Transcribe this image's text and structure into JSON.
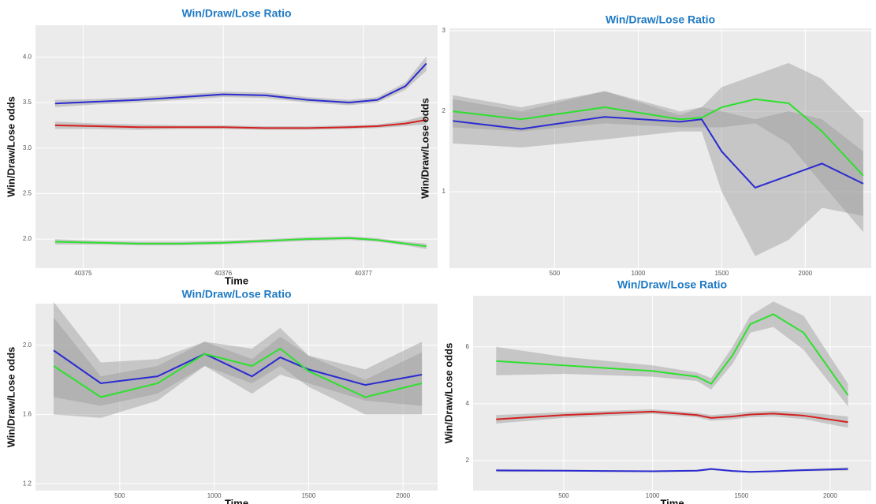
{
  "chart_data": [
    {
      "type": "line",
      "title": "Win/Draw/Lose Ratio",
      "x_label": "Time",
      "y_label": "Win/Draw/Lose odds",
      "x": [
        40374.8,
        40375.1,
        40375.4,
        40375.7,
        40376.0,
        40376.3,
        40376.6,
        40376.9,
        40377.1,
        40377.3,
        40377.45
      ],
      "xlim": [
        40374.66,
        40377.53
      ],
      "ylim": [
        1.68,
        4.35
      ],
      "xticks": [
        40375,
        40376,
        40377
      ],
      "yticks": [
        {
          "value": 2,
          "label": "2.0"
        },
        2.5,
        {
          "value": 3,
          "label": "3.0"
        },
        3.5,
        {
          "value": 4,
          "label": "4.0"
        }
      ],
      "grid": true,
      "band_color": "#9a9a9a",
      "series": [
        {
          "color": "#2b2bd1",
          "values": [
            3.49,
            3.51,
            3.53,
            3.56,
            3.59,
            3.58,
            3.53,
            3.5,
            3.53,
            3.68,
            3.93
          ],
          "lower": [
            3.45,
            3.48,
            3.5,
            3.53,
            3.56,
            3.55,
            3.5,
            3.47,
            3.5,
            3.64,
            3.85
          ],
          "upper": [
            3.53,
            3.54,
            3.56,
            3.59,
            3.62,
            3.61,
            3.56,
            3.53,
            3.56,
            3.72,
            4.01
          ]
        },
        {
          "color": "#d42020",
          "values": [
            3.25,
            3.24,
            3.23,
            3.23,
            3.23,
            3.22,
            3.22,
            3.23,
            3.24,
            3.27,
            3.31
          ],
          "lower": [
            3.21,
            3.21,
            3.2,
            3.21,
            3.21,
            3.2,
            3.2,
            3.21,
            3.22,
            3.24,
            3.26
          ],
          "upper": [
            3.29,
            3.27,
            3.26,
            3.25,
            3.25,
            3.24,
            3.24,
            3.25,
            3.26,
            3.3,
            3.36
          ]
        },
        {
          "color": "#2ee02e",
          "values": [
            1.97,
            1.96,
            1.95,
            1.95,
            1.96,
            1.98,
            2.0,
            2.01,
            1.99,
            1.95,
            1.92
          ],
          "lower": [
            1.94,
            1.94,
            1.93,
            1.93,
            1.94,
            1.96,
            1.98,
            1.99,
            1.97,
            1.93,
            1.89
          ],
          "upper": [
            2.0,
            1.98,
            1.97,
            1.97,
            1.98,
            2.0,
            2.02,
            2.03,
            2.01,
            1.97,
            1.95
          ]
        }
      ]
    },
    {
      "type": "line",
      "title": "Win/Draw/Lose Ratio",
      "y_label": "Win/Draw/Lose odds",
      "x": [
        -110,
        300,
        800,
        1250,
        1380,
        1500,
        1700,
        1900,
        2100,
        2347
      ],
      "xlim": [
        -130,
        2395
      ],
      "ylim": [
        0.05,
        3.03
      ],
      "xticks": [
        500,
        1000,
        1500,
        2000
      ],
      "yticks": [
        1,
        2,
        3
      ],
      "grid": true,
      "band_color": "#9a9a9a",
      "series": [
        {
          "color": "#2ee02e",
          "values": [
            2.0,
            1.9,
            2.05,
            1.9,
            1.92,
            2.05,
            2.15,
            2.1,
            1.75,
            1.2
          ],
          "lower": [
            1.8,
            1.75,
            1.85,
            1.8,
            1.8,
            1.8,
            1.85,
            1.6,
            1.1,
            0.5
          ],
          "upper": [
            2.2,
            2.05,
            2.25,
            2.0,
            2.05,
            2.3,
            2.45,
            2.6,
            2.4,
            1.9
          ]
        },
        {
          "color": "#2b2bd1",
          "values": [
            1.88,
            1.78,
            1.93,
            1.87,
            1.9,
            1.5,
            1.05,
            1.2,
            1.35,
            1.1
          ],
          "lower": [
            1.6,
            1.55,
            1.65,
            1.75,
            1.75,
            1.0,
            0.2,
            0.4,
            0.8,
            0.7
          ],
          "upper": [
            2.15,
            2.0,
            2.25,
            1.95,
            2.05,
            2.0,
            1.9,
            2.0,
            1.9,
            1.5
          ]
        }
      ]
    },
    {
      "type": "line",
      "title": "Win/Draw/Lose Ratio",
      "x_label": "Time",
      "y_label": "Win/Draw/Lose odds",
      "x": [
        150,
        400,
        700,
        950,
        1200,
        1350,
        1500,
        1800,
        2100
      ],
      "xlim": [
        54,
        2183
      ],
      "ylim": [
        1.16,
        2.24
      ],
      "xticks": [
        500,
        1000,
        1500,
        2000
      ],
      "yticks": [
        1.2,
        1.6,
        {
          "value": 2,
          "label": "2.0"
        }
      ],
      "grid": true,
      "band_color": "#9a9a9a",
      "series": [
        {
          "color": "#2b2bd1",
          "values": [
            1.97,
            1.78,
            1.82,
            1.95,
            1.82,
            1.93,
            1.86,
            1.77,
            1.83
          ],
          "lower": [
            1.7,
            1.65,
            1.72,
            1.88,
            1.72,
            1.83,
            1.78,
            1.68,
            1.65
          ],
          "upper": [
            2.25,
            1.9,
            1.92,
            2.02,
            1.92,
            2.05,
            1.94,
            1.86,
            2.02
          ]
        },
        {
          "color": "#2ee02e",
          "values": [
            1.88,
            1.7,
            1.78,
            1.95,
            1.88,
            1.98,
            1.85,
            1.7,
            1.78
          ],
          "lower": [
            1.6,
            1.58,
            1.68,
            1.88,
            1.78,
            1.88,
            1.76,
            1.6,
            1.6
          ],
          "upper": [
            2.16,
            1.82,
            1.88,
            2.02,
            1.98,
            2.1,
            1.94,
            1.8,
            1.96
          ]
        }
      ]
    },
    {
      "type": "line",
      "title": "Win/Draw/Lose Ratio",
      "x_label": "Time",
      "y_label": "Win/Draw/Lose odds",
      "x": [
        120,
        500,
        1000,
        1250,
        1330,
        1450,
        1550,
        1680,
        1850,
        2100
      ],
      "xlim": [
        -10,
        2231
      ],
      "ylim": [
        0.94,
        7.8
      ],
      "xticks": [
        500,
        1000,
        1500,
        2000
      ],
      "yticks": [
        2,
        4,
        6
      ],
      "grid": true,
      "band_color": "#9a9a9a",
      "series": [
        {
          "color": "#2ee02e",
          "values": [
            5.5,
            5.35,
            5.15,
            4.95,
            4.7,
            5.7,
            6.8,
            7.15,
            6.5,
            4.3
          ],
          "lower": [
            5.0,
            5.05,
            4.95,
            4.8,
            4.5,
            5.4,
            6.5,
            6.7,
            5.9,
            3.9
          ],
          "upper": [
            6.0,
            5.65,
            5.35,
            5.1,
            4.9,
            6.0,
            7.1,
            7.6,
            7.1,
            4.7
          ]
        },
        {
          "color": "#d42020",
          "values": [
            3.45,
            3.6,
            3.72,
            3.6,
            3.5,
            3.55,
            3.62,
            3.65,
            3.58,
            3.35
          ],
          "lower": [
            3.3,
            3.5,
            3.64,
            3.52,
            3.4,
            3.45,
            3.52,
            3.55,
            3.46,
            3.15
          ],
          "upper": [
            3.6,
            3.7,
            3.8,
            3.68,
            3.6,
            3.65,
            3.72,
            3.75,
            3.7,
            3.55
          ]
        },
        {
          "color": "#2b2bd1",
          "values": [
            1.65,
            1.64,
            1.62,
            1.64,
            1.7,
            1.63,
            1.6,
            1.62,
            1.66,
            1.7
          ],
          "lower": [
            1.6,
            1.61,
            1.59,
            1.61,
            1.66,
            1.6,
            1.57,
            1.59,
            1.62,
            1.64
          ],
          "upper": [
            1.7,
            1.67,
            1.65,
            1.67,
            1.74,
            1.66,
            1.63,
            1.65,
            1.7,
            1.76
          ]
        }
      ]
    }
  ]
}
